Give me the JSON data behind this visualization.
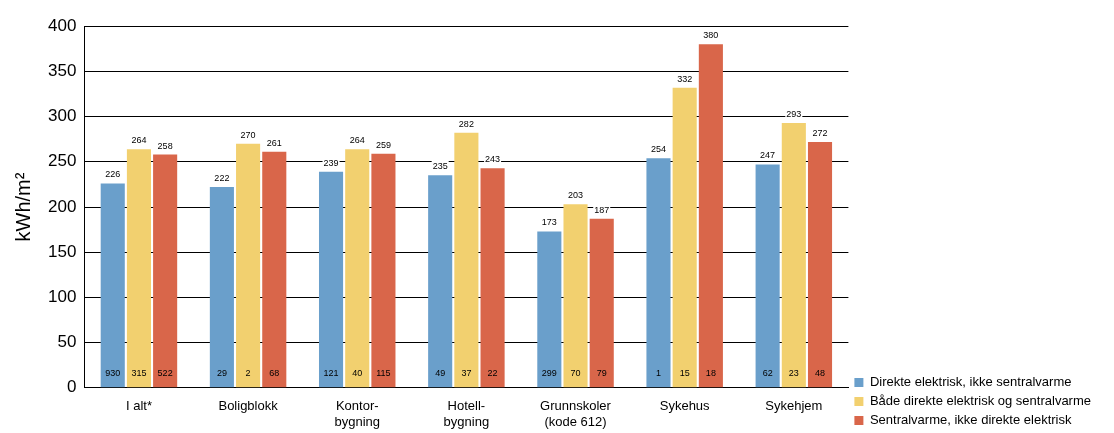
{
  "chart_data": {
    "type": "bar",
    "ylabel": "kWh/m²",
    "categories": [
      "I alt*",
      "Boligblokk",
      "Kontor-\nbygning",
      "Hotell-\nbygning",
      "Grunnskoler\n(kode 612)",
      "Sykehus",
      "Sykehjem"
    ],
    "series": [
      {
        "name": "Direkte elektrisk, ikke sentralvarme",
        "color": "#6a9fcb",
        "values": [
          226,
          222,
          239,
          235,
          173,
          254,
          247
        ]
      },
      {
        "name": "Både direkte elektrisk og sentralvarme",
        "color": "#f2d06f",
        "values": [
          264,
          270,
          264,
          282,
          203,
          332,
          293
        ]
      },
      {
        "name": "Sentralvarme, ikke direkte elektrisk",
        "color": "#d9664a",
        "values": [
          258,
          261,
          259,
          243,
          187,
          380,
          272
        ]
      }
    ],
    "annotations": [
      "930",
      "315",
      "522",
      "29",
      "2",
      "68",
      "121",
      "40",
      "115",
      "49",
      "37",
      "22",
      "299",
      "70",
      "79",
      "1",
      "15",
      "18",
      "62",
      "23",
      "48"
    ],
    "ylim": [
      0,
      400
    ],
    "yticks": [
      0,
      50,
      100,
      150,
      200,
      250,
      300,
      350,
      400
    ],
    "grid": "y",
    "legend": "bottom right",
    "data_labels": true
  }
}
